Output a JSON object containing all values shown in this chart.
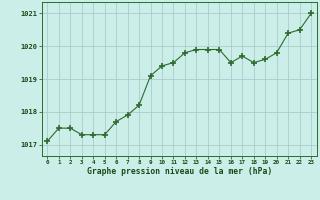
{
  "x": [
    0,
    1,
    2,
    3,
    4,
    5,
    6,
    7,
    8,
    9,
    10,
    11,
    12,
    13,
    14,
    15,
    16,
    17,
    18,
    19,
    20,
    21,
    22,
    23
  ],
  "y": [
    1017.1,
    1017.5,
    1017.5,
    1017.3,
    1017.3,
    1017.3,
    1017.7,
    1017.9,
    1018.2,
    1019.1,
    1019.4,
    1019.5,
    1019.8,
    1019.9,
    1019.9,
    1019.9,
    1019.5,
    1019.7,
    1019.5,
    1019.6,
    1019.8,
    1020.4,
    1020.5,
    1021.0
  ],
  "line_color": "#2d6a2d",
  "marker_color": "#2d6a2d",
  "bg_color": "#cceee8",
  "grid_color": "#aacccc",
  "xlabel": "Graphe pression niveau de la mer (hPa)",
  "xlabel_color": "#1a4a1a",
  "yticks": [
    1017,
    1018,
    1019,
    1020,
    1021
  ],
  "xtick_labels": [
    "0",
    "1",
    "2",
    "3",
    "4",
    "5",
    "6",
    "7",
    "8",
    "9",
    "10",
    "11",
    "12",
    "13",
    "14",
    "15",
    "16",
    "17",
    "18",
    "19",
    "20",
    "21",
    "22",
    "23"
  ],
  "ylim": [
    1016.65,
    1021.35
  ],
  "xlim": [
    -0.5,
    23.5
  ],
  "tick_color": "#1a4a1a",
  "axis_color": "#2d6a2d",
  "spine_color": "#2d6a2d"
}
